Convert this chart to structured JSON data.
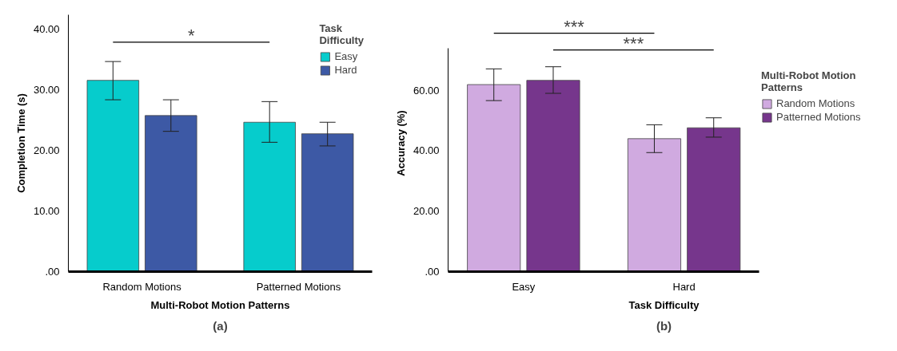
{
  "chart_data": [
    {
      "type": "bar",
      "title": "(a)",
      "xlabel": "Multi-Robot Motion Patterns",
      "ylabel": "Completion Time (s)",
      "legend_title": "Task Difficulty",
      "categories": [
        "Random Motions",
        "Patterned Motions"
      ],
      "series": [
        {
          "name": "Easy",
          "color": "#06cccc",
          "values": [
            31.5,
            24.6
          ],
          "errors": [
            [
              28.3,
              34.6
            ],
            [
              21.3,
              28.0
            ]
          ]
        },
        {
          "name": "Hard",
          "color": "#3d59a5",
          "values": [
            25.7,
            22.7
          ],
          "errors": [
            [
              23.1,
              28.3
            ],
            [
              20.7,
              24.6
            ]
          ]
        }
      ],
      "ylim": [
        0,
        42.3
      ],
      "yticks": [
        {
          "value": 0,
          "label": ".00"
        },
        {
          "value": 10,
          "label": "10.00"
        },
        {
          "value": 20,
          "label": "20.00"
        },
        {
          "value": 30,
          "label": "30.00"
        },
        {
          "value": 40,
          "label": "40.00"
        }
      ],
      "annotations": [
        "*"
      ],
      "legend": "top right",
      "grid": false
    },
    {
      "type": "bar",
      "title": "(b)",
      "xlabel": "Task Difficulty",
      "ylabel": "Accuracy (%)",
      "legend_title": "Multi-Robot Motion Patterns",
      "categories": [
        "Easy",
        "Hard"
      ],
      "series": [
        {
          "name": "Random Motions",
          "color": "#d0aae0",
          "values": [
            61.9,
            44.0
          ],
          "errors": [
            [
              56.6,
              67.1
            ],
            [
              39.4,
              48.6
            ]
          ]
        },
        {
          "name": "Patterned Motions",
          "color": "#76368c",
          "values": [
            63.3,
            47.6
          ],
          "errors": [
            [
              59.0,
              67.8
            ],
            [
              44.5,
              50.9
            ]
          ]
        }
      ],
      "ylim": [
        0,
        74
      ],
      "yticks": [
        {
          "value": 0,
          "label": ".00"
        },
        {
          "value": 20,
          "label": "20.00"
        },
        {
          "value": 40,
          "label": "40.00"
        },
        {
          "value": 60,
          "label": "60.00"
        }
      ],
      "annotations": [
        "***",
        "***"
      ],
      "legend": "right",
      "grid": false
    }
  ]
}
